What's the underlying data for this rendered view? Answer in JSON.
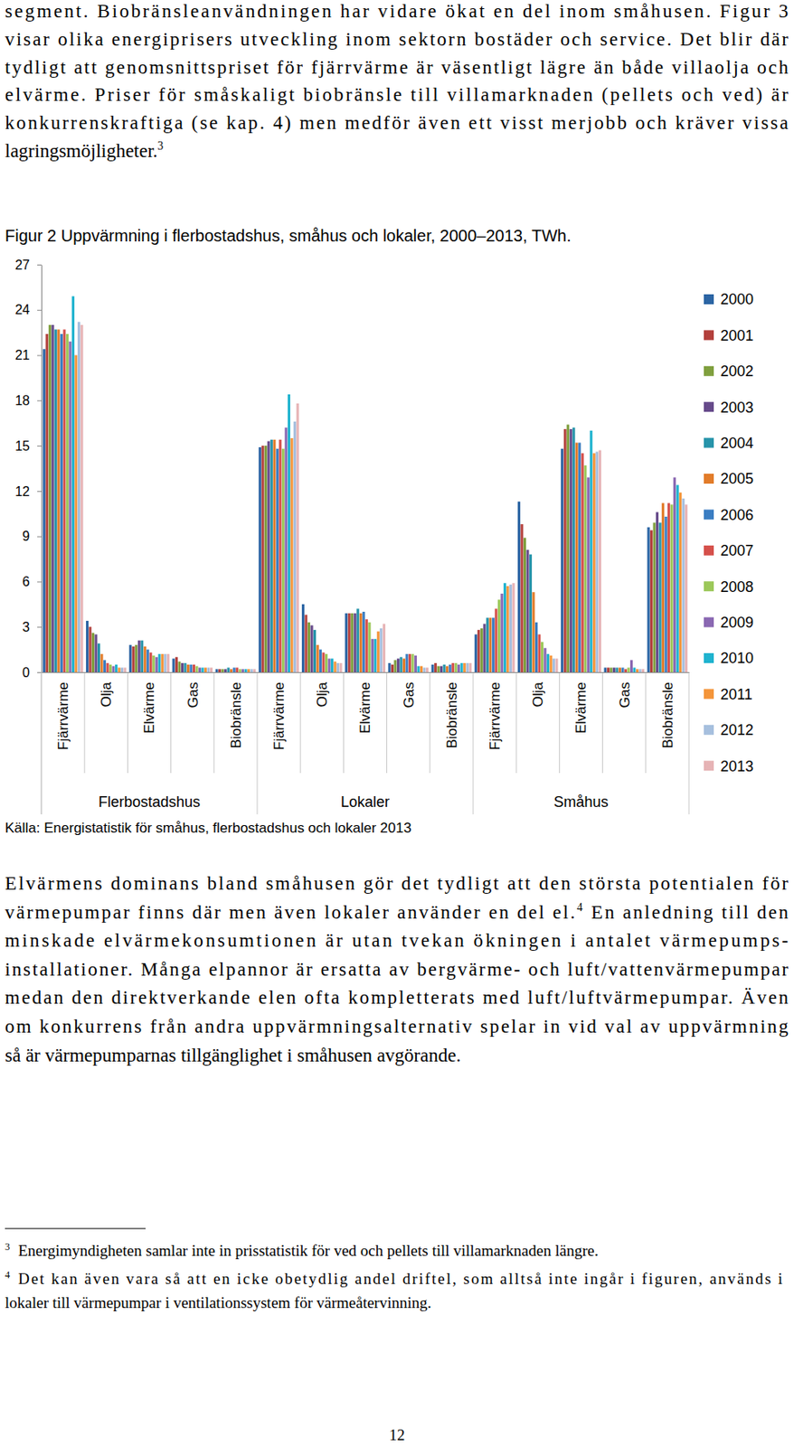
{
  "document": {
    "top_paragraph": {
      "lines": [
        [
          "segment. Biobränsleanvändningen har vidare ökat en del inom småhusen. Figur 3"
        ],
        [
          "visar olika energiprisers utveckling inom sektorn bostäder och service. Det blir där"
        ],
        [
          "tydligt att genomsnittspriset för fjärrvärme är väsentligt lägre än både villaolja och"
        ],
        [
          "elvärme. Priser för småskaligt biobränsle till villamarknaden (pellets och ved) är"
        ],
        [
          "konkurrenskraftiga (se kap. 4) men medför även ett visst merjobb och kräver vissa"
        ],
        [
          "lagringsmöjligheter.",
          {
            "sup": "3"
          }
        ]
      ]
    },
    "source": "Källa: Energistatistik för småhus, flerbostadshus och lokaler 2013",
    "body_paragraph": {
      "lines": [
        [
          "Elvärmens dominans bland småhusen gör det tydligt att den största potentialen för"
        ],
        [
          "värmepumpar finns där men även lokaler använder en del el.",
          {
            "sup": "4"
          },
          " En anledning till den"
        ],
        [
          "minskade elvärmekonsumtionen är utan tvekan ökningen i antalet värmepumps-"
        ],
        [
          "installationer. Många elpannor är ersatta av bergvärme- och luft/vattenvärmepumpar"
        ],
        [
          "medan den direktverkande elen ofta kompletterats med luft/luftvärmepumpar. Även"
        ],
        [
          "om konkurrens från andra uppvärmningsalternativ spelar in vid val av uppvärmning"
        ],
        [
          "så är värmepumparnas tillgänglighet i småhusen avgörande."
        ]
      ]
    },
    "footnotes": [
      {
        "number": "3",
        "lines": [
          "Energimyndigheten samlar inte in prisstatistik för ved och pellets till villamarknaden längre."
        ]
      },
      {
        "number": "4",
        "lines": [
          "Det kan även vara så att en icke obetydlig andel driftel, som alltså inte ingår i figuren, används i",
          "lokaler till värmepumpar i ventilationssystem för värmeåtervinning."
        ]
      }
    ],
    "page_number": "12"
  },
  "chart_data": {
    "type": "bar",
    "title": "Figur 2 Uppvärmning i flerbostadshus, småhus och lokaler, 2000–2013, TWh.",
    "categories": [
      "Fjärrvärme",
      "Olja",
      "Elvärme",
      "Gas",
      "Biobränsle",
      "Fjärrvärme",
      "Olja",
      "Elvärme",
      "Gas",
      "Biobränsle",
      "Fjärrvärme",
      "Olja",
      "Elvärme",
      "Gas",
      "Biobränsle"
    ],
    "category_groups": [
      "Flerbostadshus",
      "Lokaler",
      "Småhus"
    ],
    "series": [
      {
        "name": "2000",
        "color": "#2c65a4",
        "values": [
          21.4,
          3.4,
          1.8,
          0.9,
          0.2,
          14.9,
          4.5,
          3.9,
          0.6,
          0.5,
          2.5,
          11.3,
          14.8,
          0.3,
          9.6
        ]
      },
      {
        "name": "2001",
        "color": "#b3403c",
        "values": [
          22.4,
          3.0,
          1.7,
          1.0,
          0.2,
          15.0,
          3.8,
          3.9,
          0.5,
          0.6,
          2.8,
          9.8,
          16.1,
          0.3,
          9.4
        ]
      },
      {
        "name": "2002",
        "color": "#7f9f3e",
        "values": [
          23.0,
          2.6,
          1.8,
          0.7,
          0.2,
          15.0,
          3.3,
          3.9,
          0.8,
          0.4,
          2.9,
          8.9,
          16.4,
          0.3,
          9.9
        ]
      },
      {
        "name": "2003",
        "color": "#664a8a",
        "values": [
          23.0,
          2.5,
          2.1,
          0.6,
          0.2,
          15.3,
          3.1,
          3.9,
          0.9,
          0.4,
          3.2,
          8.1,
          16.1,
          0.3,
          10.6
        ]
      },
      {
        "name": "2004",
        "color": "#2794aa",
        "values": [
          22.7,
          1.9,
          2.1,
          0.6,
          0.3,
          15.4,
          2.8,
          4.2,
          1.0,
          0.5,
          3.6,
          7.8,
          16.2,
          0.3,
          9.9
        ]
      },
      {
        "name": "2005",
        "color": "#e27c2a",
        "values": [
          22.7,
          1.2,
          1.7,
          0.5,
          0.2,
          15.4,
          1.8,
          3.9,
          0.9,
          0.4,
          3.6,
          5.3,
          15.2,
          0.3,
          11.2
        ]
      },
      {
        "name": "2006",
        "color": "#3a7dc2",
        "values": [
          22.4,
          0.8,
          1.5,
          0.5,
          0.3,
          14.8,
          1.5,
          4.0,
          1.2,
          0.5,
          3.6,
          3.3,
          15.2,
          0.3,
          10.3
        ]
      },
      {
        "name": "2007",
        "color": "#d5504b",
        "values": [
          22.7,
          0.6,
          1.3,
          0.5,
          0.3,
          15.4,
          1.3,
          3.5,
          1.2,
          0.6,
          4.2,
          2.5,
          14.5,
          0.2,
          11.2
        ]
      },
      {
        "name": "2008",
        "color": "#9cc85a",
        "values": [
          22.4,
          0.5,
          1.1,
          0.4,
          0.2,
          14.8,
          1.2,
          3.3,
          1.2,
          0.6,
          4.8,
          2.0,
          13.7,
          0.3,
          11.1
        ]
      },
      {
        "name": "2009",
        "color": "#8a68b2",
        "values": [
          21.9,
          0.4,
          1.0,
          0.3,
          0.2,
          16.2,
          0.9,
          2.2,
          1.1,
          0.5,
          5.2,
          1.6,
          12.9,
          0.8,
          12.9
        ]
      },
      {
        "name": "2010",
        "color": "#1fb3cf",
        "values": [
          24.9,
          0.5,
          1.2,
          0.3,
          0.2,
          18.4,
          0.9,
          2.2,
          0.4,
          0.6,
          5.9,
          1.2,
          16.0,
          0.3,
          12.4
        ]
      },
      {
        "name": "2011",
        "color": "#f4953a",
        "values": [
          21.0,
          0.3,
          1.2,
          0.3,
          0.2,
          15.5,
          0.7,
          2.7,
          0.4,
          0.6,
          5.7,
          1.1,
          14.5,
          0.2,
          11.9
        ]
      },
      {
        "name": "2012",
        "color": "#a6bfde",
        "values": [
          23.2,
          0.3,
          1.2,
          0.3,
          0.2,
          16.6,
          0.6,
          2.9,
          0.3,
          0.6,
          5.8,
          0.9,
          14.6,
          0.2,
          11.5
        ]
      },
      {
        "name": "2013",
        "color": "#e6b3b5",
        "values": [
          23.0,
          0.3,
          1.2,
          0.3,
          0.2,
          17.8,
          0.6,
          3.2,
          0.3,
          0.6,
          5.9,
          0.9,
          14.7,
          0.2,
          11.1
        ]
      }
    ],
    "ylim": [
      0,
      27
    ],
    "yticks": [
      0,
      3,
      6,
      9,
      12,
      15,
      18,
      21,
      24,
      27
    ],
    "grid": false,
    "legend": "right"
  }
}
